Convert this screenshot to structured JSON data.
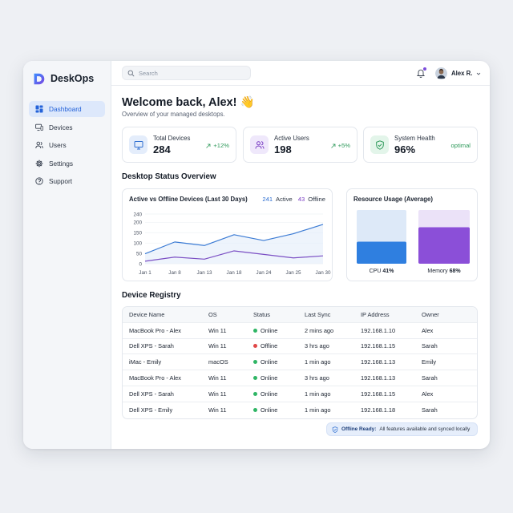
{
  "app": {
    "name": "DeskOps"
  },
  "sidebar": {
    "items": [
      {
        "label": "Dashboard",
        "icon": "dashboard-icon",
        "active": true
      },
      {
        "label": "Devices",
        "icon": "devices-icon"
      },
      {
        "label": "Users",
        "icon": "users-icon"
      },
      {
        "label": "Settings",
        "icon": "gear-icon"
      },
      {
        "label": "Support",
        "icon": "help-icon"
      }
    ]
  },
  "topbar": {
    "search_placeholder": "Search",
    "user_name": "Alex R.",
    "notification_icon": "bell-icon"
  },
  "header": {
    "welcome": "Welcome back, Alex! 👋",
    "subtitle": "Overview of your managed desktops."
  },
  "stats": [
    {
      "label": "Total Devices",
      "value": "284",
      "trend": "+12%",
      "icon": "monitor-icon",
      "icon_bg": "#e4edfb",
      "icon_color": "#2f6fd1"
    },
    {
      "label": "Active Users",
      "value": "198",
      "trend": "+5%",
      "icon": "users-icon",
      "icon_bg": "#efe8fb",
      "icon_color": "#7b3fc4"
    },
    {
      "label": "System Health",
      "value": "96%",
      "trend": "optimal",
      "icon": "shield-check-icon",
      "icon_bg": "#e3f5ea",
      "icon_color": "#2f9a5b"
    }
  ],
  "status_overview": {
    "title": "Desktop Status Overview",
    "active_offline_title": "Active vs Offline Devices (Last 30 Days)",
    "legend_active_value": "241",
    "legend_active_label": "Active",
    "legend_offline_value": "43",
    "legend_offline_label": "Offline",
    "resource_title": "Resource Usage (Average)",
    "cpu_label": "CPU",
    "cpu_value": "41%",
    "memory_label": "Memory",
    "memory_value": "68%"
  },
  "chart_data": [
    {
      "type": "line",
      "title": "Active vs Offline Devices (Last 30 Days)",
      "x": [
        "Jan 1",
        "Jan 8",
        "Jan 13",
        "Jan 18",
        "Jan 24",
        "Jan 25",
        "Jan 30"
      ],
      "yticks": [
        0,
        50,
        100,
        150,
        200,
        240
      ],
      "ylim": [
        0,
        240
      ],
      "series": [
        {
          "name": "Active",
          "color": "#3b7bd4",
          "values": [
            48,
            105,
            88,
            140,
            112,
            145,
            190
          ]
        },
        {
          "name": "Offline",
          "color": "#7b4fc4",
          "values": [
            12,
            32,
            22,
            62,
            45,
            28,
            38
          ]
        }
      ],
      "grid": true
    },
    {
      "type": "bar",
      "title": "Resource Usage (Average)",
      "categories": [
        "CPU",
        "Memory"
      ],
      "values": [
        41,
        68
      ],
      "ylim": [
        0,
        100
      ],
      "colors": [
        "#2f7fe0",
        "#8b4fd8"
      ],
      "track_colors": [
        "#dde9f8",
        "#ebe2f8"
      ]
    }
  ],
  "registry": {
    "title": "Device Registry",
    "columns": [
      "Device Name",
      "OS",
      "Status",
      "Last Sync",
      "IP Address",
      "Owner"
    ],
    "rows": [
      {
        "device": "MacBook Pro - Alex",
        "os": "Win 11",
        "status": "Online",
        "sync": "2 mins ago",
        "ip": "192.168.1.10",
        "owner": "Alex",
        "status_color": "#2fb565"
      },
      {
        "device": "Dell XPS - Sarah",
        "os": "Win 11",
        "status": "Offline",
        "sync": "3 hrs ago",
        "ip": "192.168.1.15",
        "owner": "Sarah",
        "status_color": "#e04848"
      },
      {
        "device": "iMac - Emily",
        "os": "macOS",
        "status": "Online",
        "sync": "1 min ago",
        "ip": "192.168.1.13",
        "owner": "Emily",
        "status_color": "#2fb565"
      },
      {
        "device": "MacBook Pro - Alex",
        "os": "Win 11",
        "status": "Online",
        "sync": "3 hrs ago",
        "ip": "192.168.1.13",
        "owner": "Sarah",
        "status_color": "#2fb565"
      },
      {
        "device": "Dell XPS - Sarah",
        "os": "Win 11",
        "status": "Online",
        "sync": "1 min ago",
        "ip": "192.168.1.15",
        "owner": "Alex",
        "status_color": "#2fb565"
      },
      {
        "device": "Dell XPS - Emily",
        "os": "Win 11",
        "status": "Online",
        "sync": "1 min ago",
        "ip": "192.168.1.18",
        "owner": "Sarah",
        "status_color": "#2fb565"
      }
    ]
  },
  "offline_badge": {
    "strong": "Offline Ready:",
    "text": "All features available and synced locally",
    "icon": "shield-icon"
  }
}
